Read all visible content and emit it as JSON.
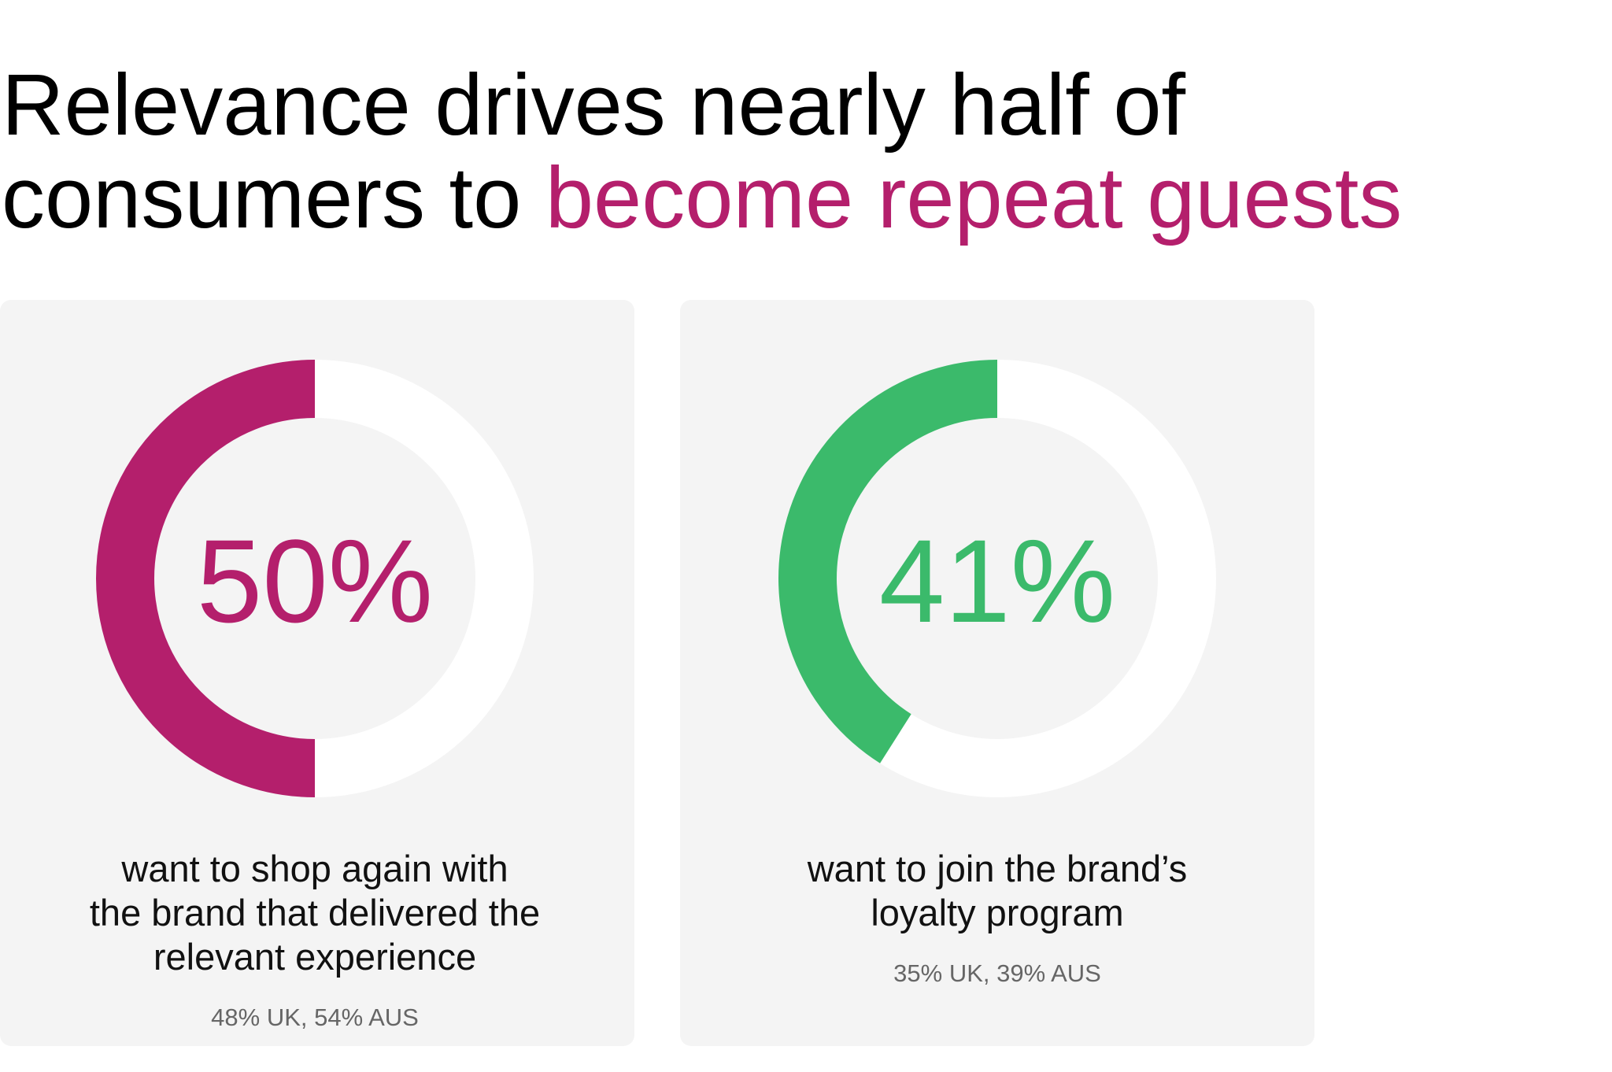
{
  "header": {
    "title": [
      "Relevance drives nearly half of",
      "consumers to"
    ],
    "title_highlight": "become repeat guests",
    "highlight_color": "#b41f6c"
  },
  "chart_data": [
    {
      "type": "donut",
      "values": [
        50
      ],
      "value_labels": [
        "50%"
      ],
      "ylim": [
        0,
        100
      ],
      "color": "#b41f6c",
      "description": [
        "want to shop again with",
        "the brand that delivered the",
        "relevant experience"
      ],
      "note": "48% UK, 54% AUS"
    },
    {
      "type": "donut",
      "values": [
        41
      ],
      "value_labels": [
        "41%"
      ],
      "ylim": [
        0,
        100
      ],
      "color": "#3bba6b",
      "description": [
        "want to join the brand’s",
        "loyalty program"
      ],
      "note": "35% UK, 39% AUS"
    }
  ]
}
